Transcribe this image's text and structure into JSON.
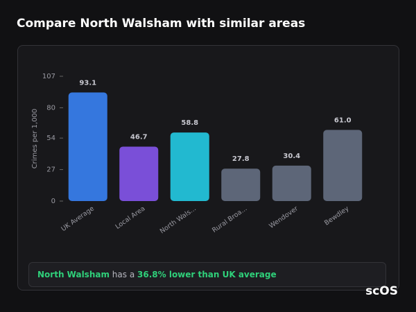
{
  "title": "Compare North Walsham with similar areas",
  "chart_data": {
    "type": "bar",
    "ylabel": "Crimes per 1,000",
    "categories": [
      "UK Average",
      "Local Area",
      "North Wals...",
      "Rural Broa...",
      "Wendover",
      "Bewdley"
    ],
    "values": [
      93.1,
      46.7,
      58.8,
      27.8,
      30.4,
      61.0
    ],
    "value_labels": [
      "93.1",
      "46.7",
      "58.8",
      "27.8",
      "30.4",
      "61.0"
    ],
    "colors": [
      "#3577de",
      "#7a4fd8",
      "#22b9d0",
      "#5d6678",
      "#5d6678",
      "#5d6678"
    ],
    "ylim": [
      0,
      107
    ],
    "yticks": [
      0,
      27,
      54,
      80,
      107
    ],
    "grid": false
  },
  "summary": {
    "area": "North Walsham",
    "text": "has a",
    "highlight": "36.8% lower than UK average"
  },
  "watermark": "scOS"
}
